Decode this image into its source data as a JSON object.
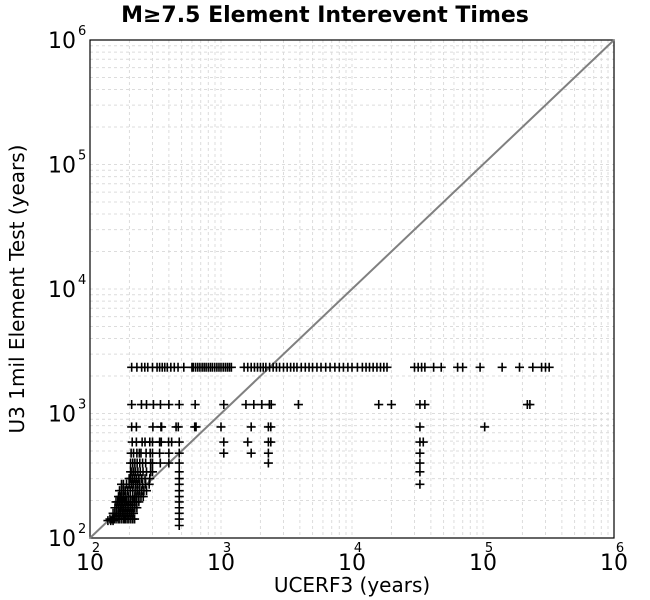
{
  "chart_data": {
    "type": "scatter",
    "title": "M≥7.5 Element Interevent Times",
    "xlabel": "UCERF3 (years)",
    "ylabel": "U3 1mil Element Test (years)",
    "x_scale": "log",
    "y_scale": "log",
    "xlim": [
      100,
      1000000
    ],
    "ylim": [
      100,
      1000000
    ],
    "grid": true,
    "x_ticks": [
      {
        "base": "10",
        "exp": "2"
      },
      {
        "base": "10",
        "exp": "3"
      },
      {
        "base": "10",
        "exp": "4"
      },
      {
        "base": "10",
        "exp": "5"
      },
      {
        "base": "10",
        "exp": "6"
      }
    ],
    "y_ticks": [
      {
        "base": "10",
        "exp": "2"
      },
      {
        "base": "10",
        "exp": "3"
      },
      {
        "base": "10",
        "exp": "4"
      },
      {
        "base": "10",
        "exp": "5"
      },
      {
        "base": "10",
        "exp": "6"
      }
    ],
    "reference_line": {
      "x": [
        100,
        1000000
      ],
      "y": [
        100,
        1000000
      ],
      "color": "#808080"
    },
    "marker": "+",
    "marker_color": "#000000",
    "points": [
      [
        208,
        2350
      ],
      [
        228,
        2350
      ],
      [
        248,
        2350
      ],
      [
        262,
        2350
      ],
      [
        276,
        2350
      ],
      [
        300,
        2350
      ],
      [
        325,
        2350
      ],
      [
        340,
        2350
      ],
      [
        356,
        2350
      ],
      [
        372,
        2350
      ],
      [
        389,
        2350
      ],
      [
        414,
        2350
      ],
      [
        440,
        2350
      ],
      [
        470,
        2350
      ],
      [
        520,
        2350
      ],
      [
        600,
        2350
      ],
      [
        615,
        2350
      ],
      [
        640,
        2350
      ],
      [
        665,
        2350
      ],
      [
        690,
        2350
      ],
      [
        718,
        2350
      ],
      [
        744,
        2350
      ],
      [
        770,
        2350
      ],
      [
        800,
        2350
      ],
      [
        830,
        2350
      ],
      [
        860,
        2350
      ],
      [
        895,
        2350
      ],
      [
        930,
        2350
      ],
      [
        965,
        2350
      ],
      [
        1000,
        2350
      ],
      [
        1040,
        2350
      ],
      [
        1080,
        2350
      ],
      [
        1120,
        2350
      ],
      [
        1160,
        2350
      ],
      [
        1200,
        2350
      ],
      [
        1500,
        2350
      ],
      [
        1600,
        2350
      ],
      [
        1700,
        2350
      ],
      [
        1800,
        2350
      ],
      [
        1900,
        2350
      ],
      [
        2000,
        2350
      ],
      [
        2100,
        2350
      ],
      [
        2200,
        2350
      ],
      [
        2350,
        2350
      ],
      [
        2500,
        2350
      ],
      [
        2650,
        2350
      ],
      [
        2800,
        2350
      ],
      [
        3000,
        2350
      ],
      [
        3200,
        2350
      ],
      [
        3400,
        2350
      ],
      [
        3600,
        2350
      ],
      [
        3800,
        2350
      ],
      [
        4100,
        2350
      ],
      [
        4400,
        2350
      ],
      [
        4700,
        2350
      ],
      [
        5000,
        2350
      ],
      [
        5400,
        2350
      ],
      [
        5800,
        2350
      ],
      [
        6300,
        2350
      ],
      [
        6800,
        2350
      ],
      [
        7400,
        2350
      ],
      [
        8000,
        2350
      ],
      [
        8600,
        2350
      ],
      [
        9300,
        2350
      ],
      [
        10000,
        2350
      ],
      [
        11000,
        2350
      ],
      [
        12000,
        2350
      ],
      [
        12800,
        2350
      ],
      [
        13600,
        2350
      ],
      [
        14500,
        2350
      ],
      [
        15500,
        2350
      ],
      [
        16500,
        2350
      ],
      [
        17500,
        2350
      ],
      [
        18500,
        2350
      ],
      [
        30000,
        2350
      ],
      [
        32000,
        2350
      ],
      [
        34000,
        2350
      ],
      [
        36000,
        2350
      ],
      [
        42000,
        2350
      ],
      [
        48000,
        2350
      ],
      [
        64000,
        2350
      ],
      [
        70000,
        2350
      ],
      [
        95000,
        2350
      ],
      [
        140000,
        2350
      ],
      [
        190000,
        2350
      ],
      [
        240000,
        2350
      ],
      [
        280000,
        2350
      ],
      [
        300000,
        2350
      ],
      [
        320000,
        2350
      ],
      [
        208,
        1180
      ],
      [
        247,
        1180
      ],
      [
        270,
        1180
      ],
      [
        305,
        1180
      ],
      [
        345,
        1180
      ],
      [
        400,
        1180
      ],
      [
        480,
        1180
      ],
      [
        635,
        1180
      ],
      [
        1050,
        1180
      ],
      [
        1550,
        1180
      ],
      [
        1780,
        1180
      ],
      [
        2050,
        1180
      ],
      [
        2340,
        1180
      ],
      [
        2420,
        1180
      ],
      [
        3900,
        1180
      ],
      [
        16000,
        1180
      ],
      [
        20000,
        1180
      ],
      [
        33000,
        1180
      ],
      [
        36000,
        1180
      ],
      [
        218000,
        1180
      ],
      [
        228000,
        1180
      ],
      [
        208,
        780
      ],
      [
        226,
        780
      ],
      [
        302,
        780
      ],
      [
        348,
        780
      ],
      [
        352,
        780
      ],
      [
        454,
        780
      ],
      [
        472,
        780
      ],
      [
        630,
        780
      ],
      [
        645,
        780
      ],
      [
        1000,
        780
      ],
      [
        1700,
        780
      ],
      [
        2300,
        780
      ],
      [
        2400,
        780
      ],
      [
        33000,
        780
      ],
      [
        103000,
        780
      ],
      [
        210,
        590
      ],
      [
        226,
        590
      ],
      [
        250,
        590
      ],
      [
        263,
        590
      ],
      [
        286,
        590
      ],
      [
        300,
        590
      ],
      [
        340,
        590
      ],
      [
        350,
        590
      ],
      [
        398,
        590
      ],
      [
        420,
        590
      ],
      [
        480,
        590
      ],
      [
        1050,
        590
      ],
      [
        1600,
        590
      ],
      [
        2300,
        590
      ],
      [
        2400,
        590
      ],
      [
        33000,
        590
      ],
      [
        35000,
        590
      ],
      [
        206,
        480
      ],
      [
        215,
        480
      ],
      [
        228,
        480
      ],
      [
        238,
        480
      ],
      [
        245,
        480
      ],
      [
        268,
        480
      ],
      [
        288,
        480
      ],
      [
        300,
        480
      ],
      [
        340,
        480
      ],
      [
        400,
        480
      ],
      [
        480,
        480
      ],
      [
        1050,
        480
      ],
      [
        1700,
        480
      ],
      [
        2300,
        480
      ],
      [
        33000,
        480
      ],
      [
        204,
        400
      ],
      [
        212,
        400
      ],
      [
        220,
        400
      ],
      [
        229,
        400
      ],
      [
        240,
        400
      ],
      [
        252,
        400
      ],
      [
        266,
        400
      ],
      [
        290,
        400
      ],
      [
        300,
        400
      ],
      [
        344,
        400
      ],
      [
        400,
        400
      ],
      [
        480,
        400
      ],
      [
        2300,
        400
      ],
      [
        33000,
        400
      ],
      [
        204,
        340
      ],
      [
        209,
        340
      ],
      [
        216,
        340
      ],
      [
        223,
        340
      ],
      [
        232,
        340
      ],
      [
        242,
        340
      ],
      [
        254,
        340
      ],
      [
        270,
        340
      ],
      [
        290,
        340
      ],
      [
        300,
        340
      ],
      [
        480,
        340
      ],
      [
        33000,
        340
      ],
      [
        199,
        300
      ],
      [
        203,
        300
      ],
      [
        210,
        300
      ],
      [
        218,
        300
      ],
      [
        226,
        300
      ],
      [
        236,
        300
      ],
      [
        248,
        300
      ],
      [
        263,
        300
      ],
      [
        286,
        300
      ],
      [
        480,
        300
      ],
      [
        174,
        270
      ],
      [
        180,
        270
      ],
      [
        190,
        270
      ],
      [
        199,
        270
      ],
      [
        207,
        270
      ],
      [
        214,
        270
      ],
      [
        223,
        270
      ],
      [
        231,
        270
      ],
      [
        240,
        270
      ],
      [
        252,
        270
      ],
      [
        266,
        270
      ],
      [
        283,
        270
      ],
      [
        480,
        270
      ],
      [
        33000,
        270
      ],
      [
        168,
        240
      ],
      [
        174,
        240
      ],
      [
        180,
        240
      ],
      [
        186,
        240
      ],
      [
        194,
        240
      ],
      [
        203,
        240
      ],
      [
        212,
        240
      ],
      [
        221,
        240
      ],
      [
        229,
        240
      ],
      [
        238,
        240
      ],
      [
        248,
        240
      ],
      [
        258,
        240
      ],
      [
        270,
        240
      ],
      [
        480,
        240
      ],
      [
        165,
        215
      ],
      [
        170,
        215
      ],
      [
        175,
        215
      ],
      [
        181,
        215
      ],
      [
        188,
        215
      ],
      [
        196,
        215
      ],
      [
        203,
        215
      ],
      [
        212,
        215
      ],
      [
        220,
        215
      ],
      [
        228,
        215
      ],
      [
        236,
        215
      ],
      [
        245,
        215
      ],
      [
        255,
        215
      ],
      [
        480,
        215
      ],
      [
        158,
        195
      ],
      [
        163,
        195
      ],
      [
        168,
        195
      ],
      [
        173,
        195
      ],
      [
        178,
        195
      ],
      [
        184,
        195
      ],
      [
        190,
        195
      ],
      [
        196,
        195
      ],
      [
        203,
        195
      ],
      [
        210,
        195
      ],
      [
        218,
        195
      ],
      [
        226,
        195
      ],
      [
        236,
        195
      ],
      [
        480,
        195
      ],
      [
        155,
        175
      ],
      [
        160,
        175
      ],
      [
        165,
        175
      ],
      [
        170,
        175
      ],
      [
        175,
        175
      ],
      [
        180,
        175
      ],
      [
        186,
        175
      ],
      [
        192,
        175
      ],
      [
        198,
        175
      ],
      [
        205,
        175
      ],
      [
        212,
        175
      ],
      [
        220,
        175
      ],
      [
        228,
        175
      ],
      [
        480,
        175
      ],
      [
        150,
        158
      ],
      [
        155,
        158
      ],
      [
        160,
        158
      ],
      [
        166,
        158
      ],
      [
        171,
        158
      ],
      [
        177,
        158
      ],
      [
        182,
        158
      ],
      [
        188,
        158
      ],
      [
        194,
        158
      ],
      [
        201,
        158
      ],
      [
        208,
        158
      ],
      [
        215,
        158
      ],
      [
        480,
        158
      ],
      [
        142,
        142
      ],
      [
        148,
        142
      ],
      [
        153,
        142
      ],
      [
        158,
        142
      ],
      [
        164,
        142
      ],
      [
        169,
        142
      ],
      [
        175,
        142
      ],
      [
        181,
        142
      ],
      [
        186,
        142
      ],
      [
        192,
        142
      ],
      [
        198,
        142
      ],
      [
        205,
        142
      ],
      [
        212,
        142
      ],
      [
        219,
        142
      ],
      [
        480,
        142
      ],
      [
        137,
        138
      ],
      [
        144,
        138
      ],
      [
        150,
        138
      ],
      [
        480,
        126
      ]
    ]
  }
}
